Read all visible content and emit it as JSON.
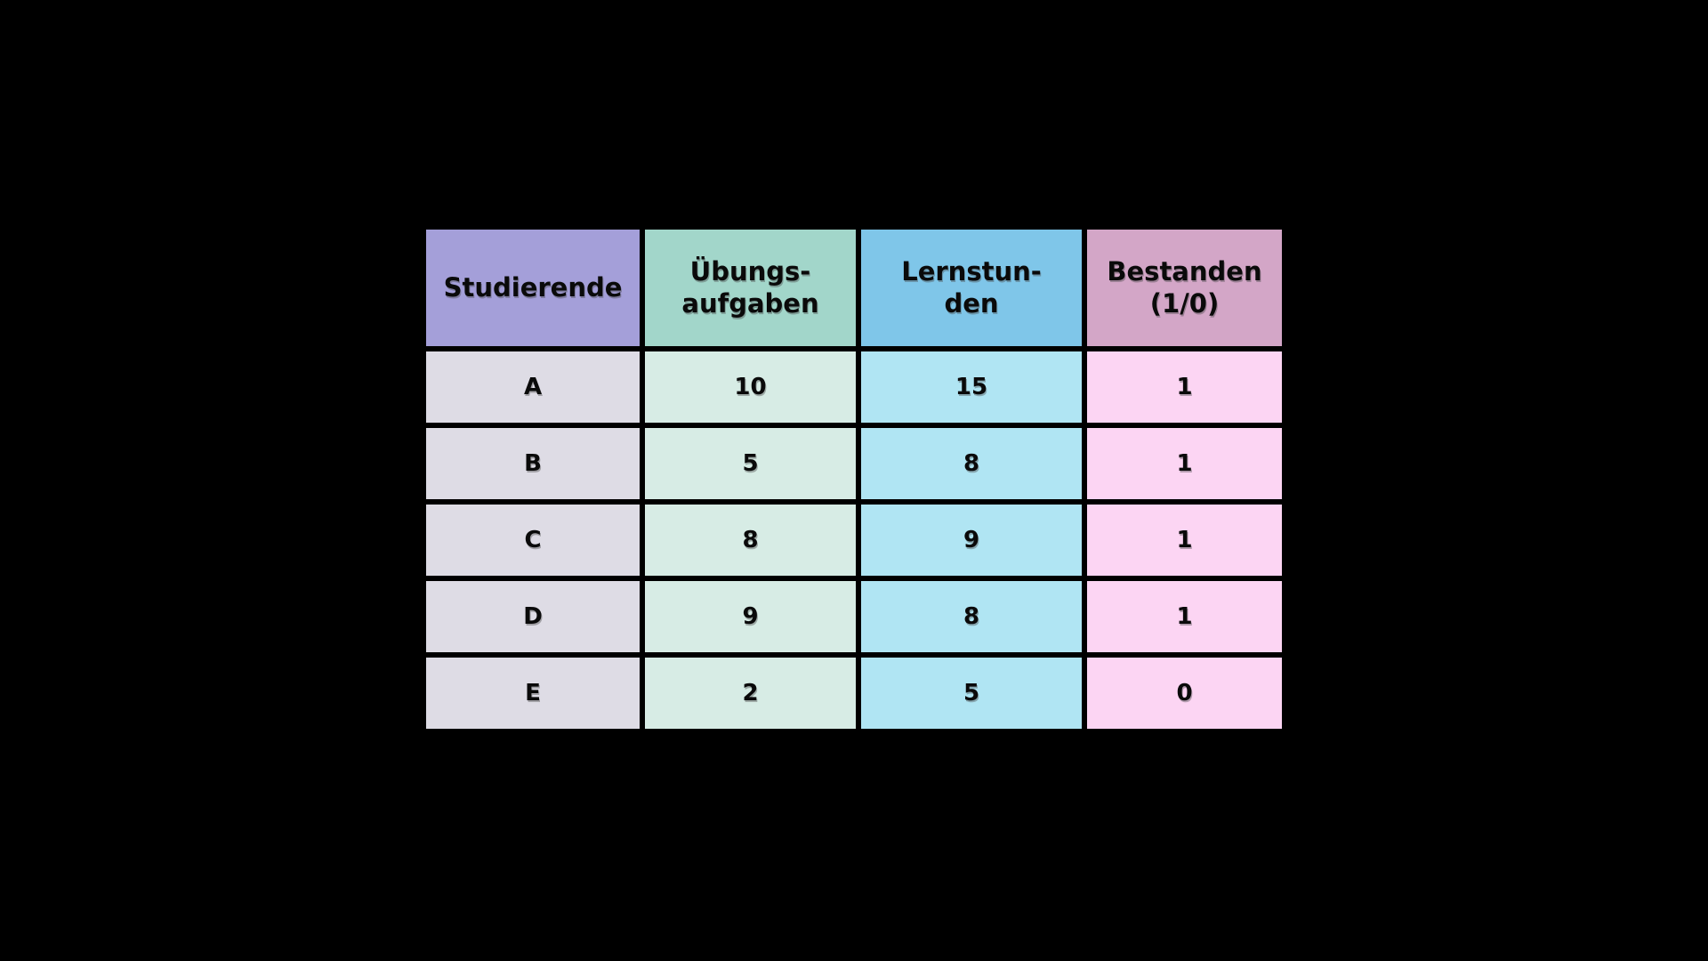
{
  "canvas": {
    "background_color": "#000000",
    "text_color": "#0a0a0a"
  },
  "chart_data": {
    "type": "table",
    "title": "",
    "columns": [
      "Studierende",
      "Übungsaufgaben",
      "Lernstunden",
      "Bestanden (1/0)"
    ],
    "rows": [
      [
        "A",
        10,
        15,
        1
      ],
      [
        "B",
        5,
        8,
        1
      ],
      [
        "C",
        8,
        9,
        1
      ],
      [
        "D",
        9,
        8,
        1
      ],
      [
        "E",
        2,
        5,
        0
      ]
    ],
    "layout": {
      "header_colors": [
        "#a49fd9",
        "#a2d6ca",
        "#7fc6e9",
        "#d3a6c7"
      ],
      "body_colors": [
        "#dedce5",
        "#d7ece5",
        "#b0e5f3",
        "#fcd5f3"
      ],
      "grid_color": "#000000"
    }
  },
  "table": {
    "headers": [
      {
        "label": "Studierende",
        "bg": "#a49fd9",
        "cell_bg": "#dedce5"
      },
      {
        "label": "Übungs-\naufgaben",
        "bg": "#a2d6ca",
        "cell_bg": "#d7ece5"
      },
      {
        "label": "Lernstun-\nden",
        "bg": "#7fc6e9",
        "cell_bg": "#b0e5f3"
      },
      {
        "label": "Bestanden\n(1/0)",
        "bg": "#d3a6c7",
        "cell_bg": "#fcd5f3"
      }
    ],
    "rows": [
      {
        "cells": [
          "A",
          "10",
          "15",
          "1"
        ]
      },
      {
        "cells": [
          "B",
          "5",
          "8",
          "1"
        ]
      },
      {
        "cells": [
          "C",
          "8",
          "9",
          "1"
        ]
      },
      {
        "cells": [
          "D",
          "9",
          "8",
          "1"
        ]
      },
      {
        "cells": [
          "E",
          "2",
          "5",
          "0"
        ]
      }
    ]
  }
}
